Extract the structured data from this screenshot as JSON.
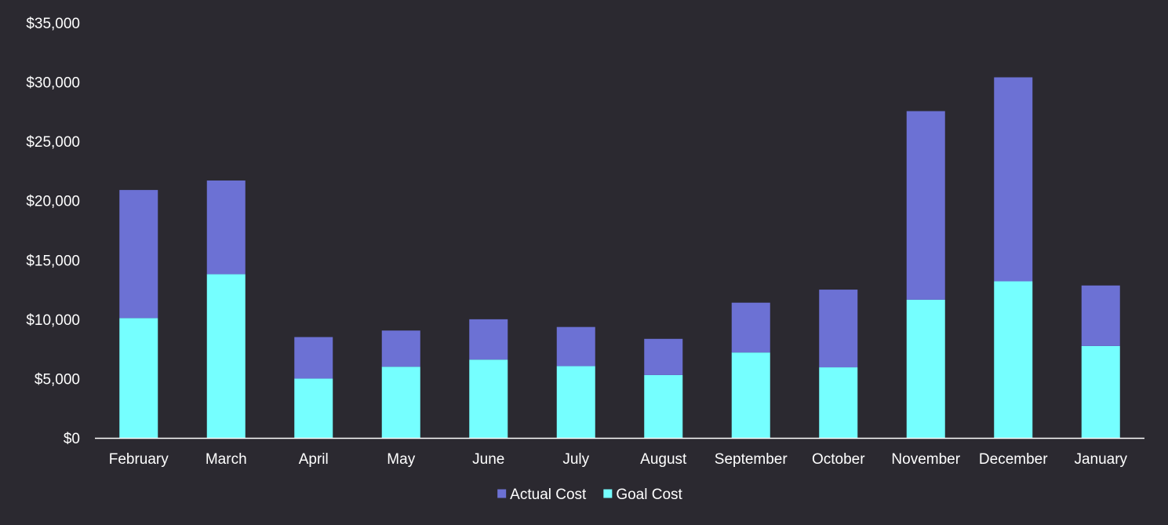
{
  "chart_data": {
    "type": "bar",
    "stacked": true,
    "title": "",
    "xlabel": "",
    "ylabel": "",
    "categories": [
      "February",
      "March",
      "April",
      "May",
      "June",
      "July",
      "August",
      "September",
      "October",
      "November",
      "December",
      "January"
    ],
    "series": [
      {
        "name": "Goal Cost",
        "color": "#75ffff",
        "values": [
          10100,
          13800,
          5000,
          6000,
          6600,
          6050,
          5300,
          7200,
          5950,
          11650,
          13200,
          7750
        ]
      },
      {
        "name": "Actual Cost",
        "color": "#6c71d4",
        "values": [
          10800,
          7900,
          3500,
          3050,
          3400,
          3300,
          3050,
          4200,
          6550,
          15900,
          17200,
          5100
        ]
      }
    ],
    "ylim": [
      0,
      35000
    ],
    "yticks": [
      0,
      5000,
      10000,
      15000,
      20000,
      25000,
      30000,
      35000
    ],
    "ytick_labels": [
      "$0",
      "$5,000",
      "$10,000",
      "$15,000",
      "$20,000",
      "$25,000",
      "$30,000",
      "$35,000"
    ],
    "grid": false,
    "legend": {
      "position": "bottom",
      "entries": [
        {
          "label": "Actual Cost",
          "color": "#6c71d4"
        },
        {
          "label": "Goal Cost",
          "color": "#75ffff"
        }
      ]
    },
    "background": "#2b2930",
    "axis_color": "#ffffff"
  }
}
